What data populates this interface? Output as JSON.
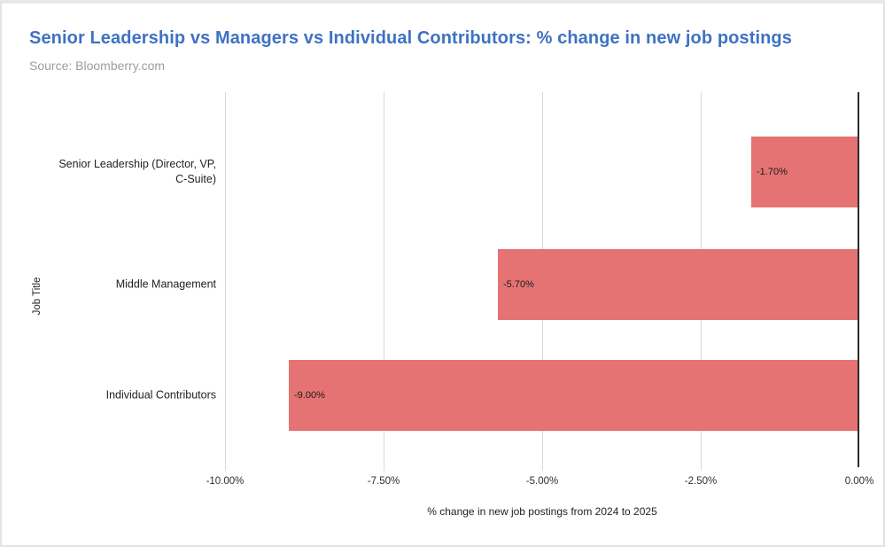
{
  "header": {
    "title": "Senior Leadership vs Managers vs Individual Contributors: % change in new job postings",
    "source": "Source: Bloomberry.com"
  },
  "chart_data": {
    "type": "bar",
    "orientation": "horizontal",
    "title": "Senior Leadership vs Managers vs Individual Contributors: % change in new job postings",
    "subtitle": "Source: Bloomberry.com",
    "categories": [
      "Senior Leadership (Director, VP, C-Suite)",
      "Middle Management",
      "Individual Contributors"
    ],
    "values": [
      -1.7,
      -5.7,
      -9.0
    ],
    "value_labels": [
      "-1.70%",
      "-5.70%",
      "-9.00%"
    ],
    "xlabel": "% change in new job postings from 2024 to 2025",
    "ylabel": "Job Title",
    "xlim": [
      -10,
      0
    ],
    "xticks": [
      -10,
      -7.5,
      -5,
      -2.5,
      0
    ],
    "xtick_labels": [
      "-10.00%",
      "-7.50%",
      "-5.00%",
      "-2.50%",
      "0.00%"
    ],
    "grid": true,
    "legend": false,
    "colors": {
      "bar": "#e57373",
      "grid": "#d9d9d9",
      "zero_line": "#2b2b2b",
      "title": "#3e72c4",
      "subtitle": "#9d9d9d"
    }
  }
}
